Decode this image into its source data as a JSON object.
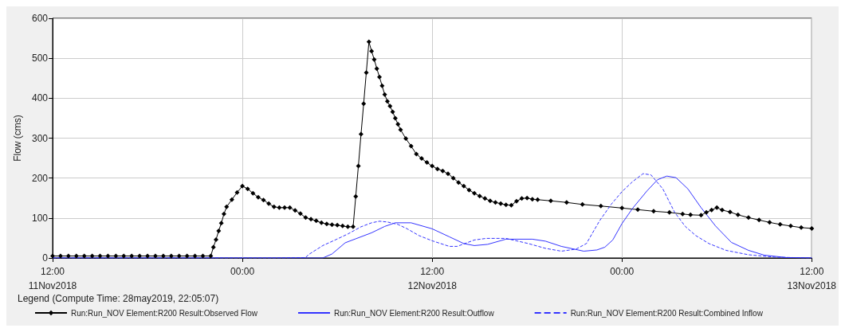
{
  "chart_data": {
    "type": "line",
    "ylabel": "Flow (cms)",
    "legend_title": "Legend (Compute Time: 28may2019, 22:05:07)",
    "legend": "bottom",
    "grid": true,
    "xlim": [
      "2018-11-11T12:00",
      "2018-11-13T12:00"
    ],
    "xticks": [
      {
        "value": "2018-11-11T12:00",
        "label": "12:00\n11Nov2018"
      },
      {
        "value": "2018-11-12T00:00",
        "label": "00:00"
      },
      {
        "value": "2018-11-12T12:00",
        "label": "12:00\n12Nov2018"
      },
      {
        "value": "2018-11-13T00:00",
        "label": "00:00"
      },
      {
        "value": "2018-11-13T12:00",
        "label": "12:00\n13Nov2018"
      }
    ],
    "ylim": [
      0,
      600
    ],
    "yticks": [
      0,
      100,
      200,
      300,
      400,
      500,
      600
    ],
    "series": [
      {
        "name": "Run:Run_NOV Element:R200 Result:Observed Flow",
        "color": "#000000",
        "marker": "diamond",
        "line_style": "solid",
        "x": [
          "2018-11-11T12:00",
          "2018-11-11T12:30",
          "2018-11-11T13:00",
          "2018-11-11T13:30",
          "2018-11-11T14:00",
          "2018-11-11T14:30",
          "2018-11-11T15:00",
          "2018-11-11T15:30",
          "2018-11-11T16:00",
          "2018-11-11T16:30",
          "2018-11-11T17:00",
          "2018-11-11T17:30",
          "2018-11-11T18:00",
          "2018-11-11T18:30",
          "2018-11-11T19:00",
          "2018-11-11T19:30",
          "2018-11-11T20:00",
          "2018-11-11T20:30",
          "2018-11-11T21:00",
          "2018-11-11T21:30",
          "2018-11-11T22:00",
          "2018-11-11T22:10",
          "2018-11-11T22:20",
          "2018-11-11T22:30",
          "2018-11-11T22:40",
          "2018-11-11T22:50",
          "2018-11-11T23:00",
          "2018-11-11T23:20",
          "2018-11-11T23:40",
          "2018-11-12T00:00",
          "2018-11-12T00:20",
          "2018-11-12T00:40",
          "2018-11-12T01:00",
          "2018-11-12T01:20",
          "2018-11-12T01:40",
          "2018-11-12T02:00",
          "2018-11-12T02:20",
          "2018-11-12T02:40",
          "2018-11-12T03:00",
          "2018-11-12T03:20",
          "2018-11-12T03:40",
          "2018-11-12T04:00",
          "2018-11-12T04:20",
          "2018-11-12T04:40",
          "2018-11-12T05:00",
          "2018-11-12T05:20",
          "2018-11-12T05:40",
          "2018-11-12T06:00",
          "2018-11-12T06:20",
          "2018-11-12T06:40",
          "2018-11-12T07:00",
          "2018-11-12T07:10",
          "2018-11-12T07:20",
          "2018-11-12T07:30",
          "2018-11-12T07:40",
          "2018-11-12T07:50",
          "2018-11-12T08:00",
          "2018-11-12T08:10",
          "2018-11-12T08:20",
          "2018-11-12T08:30",
          "2018-11-12T08:40",
          "2018-11-12T08:50",
          "2018-11-12T09:00",
          "2018-11-12T09:10",
          "2018-11-12T09:20",
          "2018-11-12T09:30",
          "2018-11-12T09:40",
          "2018-11-12T09:50",
          "2018-11-12T10:00",
          "2018-11-12T10:20",
          "2018-11-12T10:40",
          "2018-11-12T11:00",
          "2018-11-12T11:20",
          "2018-11-12T11:40",
          "2018-11-12T12:00",
          "2018-11-12T12:20",
          "2018-11-12T12:40",
          "2018-11-12T13:00",
          "2018-11-12T13:20",
          "2018-11-12T13:40",
          "2018-11-12T14:00",
          "2018-11-12T14:20",
          "2018-11-12T14:40",
          "2018-11-12T15:00",
          "2018-11-12T15:20",
          "2018-11-12T15:40",
          "2018-11-12T16:00",
          "2018-11-12T16:20",
          "2018-11-12T16:40",
          "2018-11-12T17:00",
          "2018-11-12T17:20",
          "2018-11-12T17:40",
          "2018-11-12T18:00",
          "2018-11-12T18:20",
          "2018-11-12T18:40",
          "2018-11-12T19:30",
          "2018-11-12T20:30",
          "2018-11-12T21:30",
          "2018-11-12T22:40",
          "2018-11-13T00:00",
          "2018-11-13T01:00",
          "2018-11-13T02:00",
          "2018-11-13T03:00",
          "2018-11-13T03:50",
          "2018-11-13T04:20",
          "2018-11-13T05:00",
          "2018-11-13T05:20",
          "2018-11-13T05:40",
          "2018-11-13T06:00",
          "2018-11-13T06:20",
          "2018-11-13T06:50",
          "2018-11-13T07:20",
          "2018-11-13T08:00",
          "2018-11-13T08:40",
          "2018-11-13T09:20",
          "2018-11-13T10:00",
          "2018-11-13T10:40",
          "2018-11-13T11:20",
          "2018-11-13T12:00"
        ],
        "values": [
          5,
          5,
          5,
          5,
          5,
          5,
          5,
          5,
          5,
          5,
          5,
          5,
          5,
          5,
          5,
          5,
          5,
          5,
          5,
          5,
          5,
          27,
          46,
          68,
          87,
          110,
          128,
          146,
          164,
          180,
          173,
          162,
          152,
          145,
          136,
          128,
          126,
          126,
          126,
          119,
          111,
          101,
          97,
          93,
          88,
          85,
          83,
          82,
          80,
          78,
          78,
          154,
          230,
          310,
          386,
          464,
          541,
          518,
          497,
          474,
          453,
          431,
          409,
          392,
          380,
          366,
          350,
          335,
          321,
          299,
          280,
          260,
          249,
          239,
          230,
          223,
          218,
          211,
          200,
          189,
          180,
          170,
          162,
          155,
          149,
          143,
          139,
          136,
          133,
          132,
          142,
          149,
          150,
          147,
          146,
          143,
          139,
          134,
          130,
          125,
          121,
          117,
          114,
          110,
          108,
          107,
          114,
          120,
          126,
          120,
          115,
          108,
          101,
          95,
          89,
          84,
          80,
          76,
          74
        ]
      },
      {
        "name": "Run:Run_NOV Element:R200 Result:Outflow",
        "color": "#3333ff",
        "marker": "none",
        "line_style": "solid",
        "x": [
          "2018-11-11T12:00",
          "2018-11-12T05:05",
          "2018-11-12T05:40",
          "2018-11-12T06:30",
          "2018-11-12T07:10",
          "2018-11-12T08:10",
          "2018-11-12T09:00",
          "2018-11-12T09:40",
          "2018-11-12T10:40",
          "2018-11-12T12:00",
          "2018-11-12T13:05",
          "2018-11-12T14:00",
          "2018-11-12T14:40",
          "2018-11-12T15:30",
          "2018-11-12T16:40",
          "2018-11-12T18:20",
          "2018-11-12T19:10",
          "2018-11-12T20:10",
          "2018-11-12T21:35",
          "2018-11-12T22:25",
          "2018-11-12T22:55",
          "2018-11-12T23:25",
          "2018-11-13T00:00",
          "2018-11-13T00:40",
          "2018-11-13T01:35",
          "2018-11-13T02:15",
          "2018-11-13T02:50",
          "2018-11-13T03:25",
          "2018-11-13T04:10",
          "2018-11-13T05:00",
          "2018-11-13T05:55",
          "2018-11-13T06:55",
          "2018-11-13T08:00",
          "2018-11-13T09:00",
          "2018-11-13T10:25",
          "2018-11-13T12:00"
        ],
        "values": [
          0,
          0,
          10,
          38,
          48,
          63,
          79,
          88,
          88,
          73,
          53,
          36,
          31,
          34,
          47,
          47,
          42,
          29,
          17,
          20,
          27,
          45,
          86,
          124,
          168,
          196,
          205,
          201,
          173,
          126,
          80,
          39,
          19,
          7,
          1,
          0
        ]
      },
      {
        "name": "Run:Run_NOV Element:R200 Result:Combined Inflow",
        "color": "#3333ff",
        "marker": "none",
        "line_style": "dashed",
        "x": [
          "2018-11-11T12:00",
          "2018-11-12T02:05",
          "2018-11-12T04:00",
          "2018-11-12T04:10",
          "2018-11-12T05:05",
          "2018-11-12T05:55",
          "2018-11-12T06:40",
          "2018-11-12T07:30",
          "2018-11-12T08:10",
          "2018-11-12T08:40",
          "2018-11-12T09:10",
          "2018-11-12T09:50",
          "2018-11-12T10:25",
          "2018-11-12T11:10",
          "2018-11-12T12:00",
          "2018-11-12T13:05",
          "2018-11-12T13:35",
          "2018-11-12T14:40",
          "2018-11-12T15:25",
          "2018-11-12T16:40",
          "2018-11-12T18:05",
          "2018-11-12T19:10",
          "2018-11-12T20:10",
          "2018-11-12T21:05",
          "2018-11-12T21:45",
          "2018-11-12T22:35",
          "2018-11-12T23:20",
          "2018-11-13T00:00",
          "2018-11-13T00:40",
          "2018-11-13T01:20",
          "2018-11-13T01:50",
          "2018-11-13T02:35",
          "2018-11-13T03:20",
          "2018-11-13T04:00",
          "2018-11-13T04:40",
          "2018-11-13T05:30",
          "2018-11-13T06:35",
          "2018-11-13T08:00",
          "2018-11-13T09:40",
          "2018-11-13T12:00"
        ],
        "values": [
          0,
          0,
          1,
          8,
          31,
          46,
          60,
          78,
          88,
          92,
          90,
          84,
          73,
          56,
          43,
          29,
          29,
          45,
          49,
          49,
          36,
          24,
          17,
          22,
          36,
          93,
          135,
          166,
          191,
          211,
          208,
          173,
          114,
          79,
          56,
          36,
          19,
          8,
          2,
          0
        ]
      }
    ]
  }
}
